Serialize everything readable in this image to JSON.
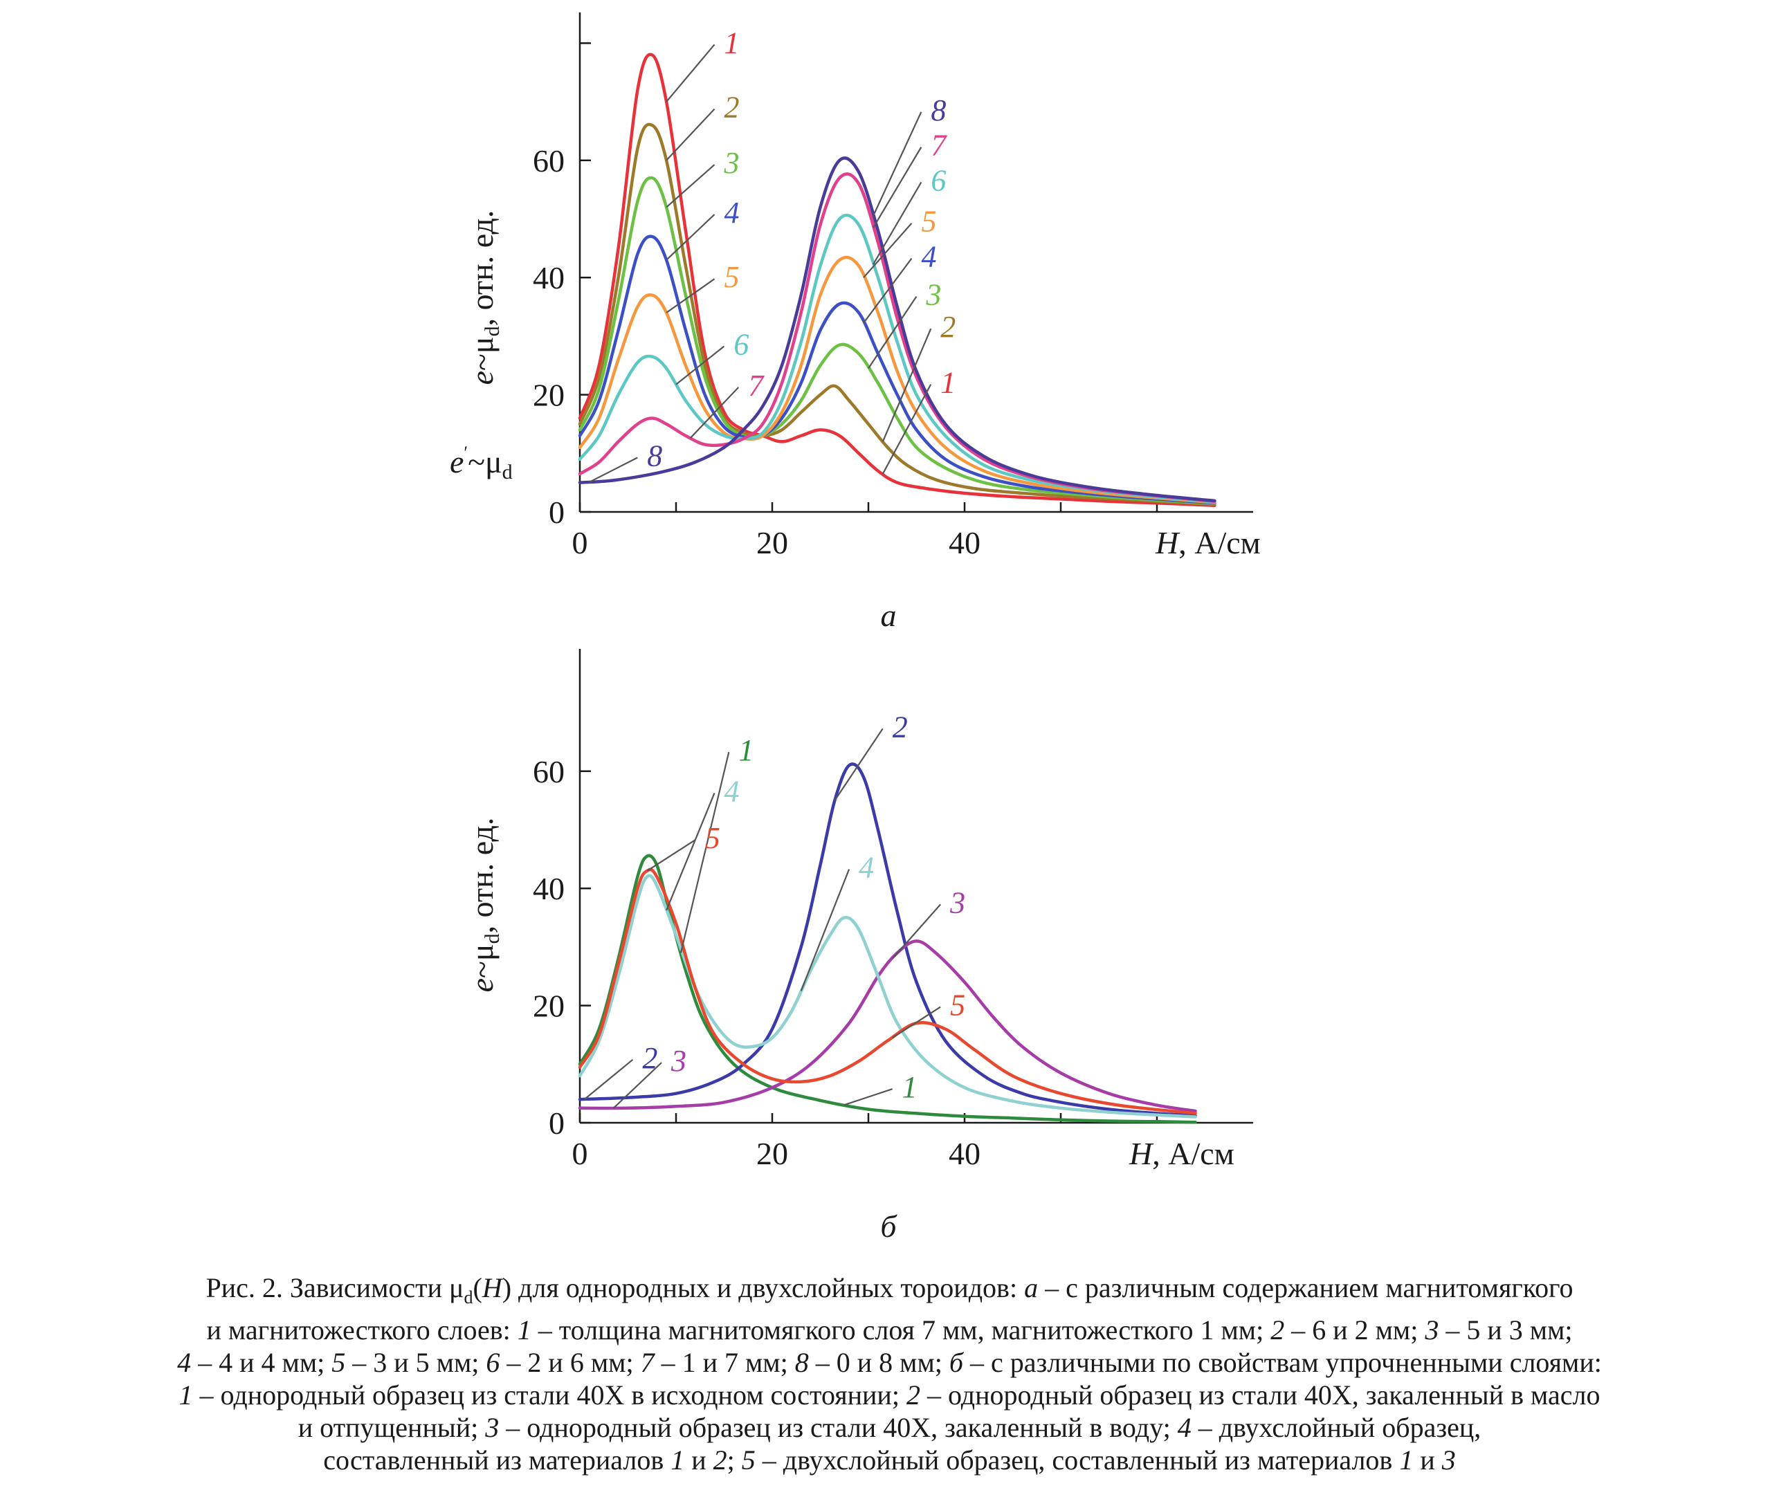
{
  "colors": {
    "axis": "#1a1a1a",
    "leader": "#555555",
    "a": [
      "#e8323a",
      "#9c7a2a",
      "#6cc044",
      "#3d4fc4",
      "#f5983e",
      "#5cc8c4",
      "#e0408c",
      "#4a3a9a"
    ],
    "b": [
      "#2e8a3c",
      "#3a3aa8",
      "#a63ca8",
      "#8fd0d0",
      "#e8482e"
    ]
  },
  "chart_data": [
    {
      "type": "line",
      "panel_label": "а",
      "xlabel_var": "H",
      "xlabel_unit": ", А/см",
      "ylabel": "e~μ",
      "ylabel_sub": "d",
      "ylabel_unit": ", отн. ед.",
      "yextra_e": "e",
      "yextra_prime": "′",
      "yextra_mu": "~μ",
      "yextra_sub": "d",
      "xlim": [
        0,
        70
      ],
      "ylim": [
        0,
        85
      ],
      "xticks": [
        {
          "v": 0,
          "l": "0"
        },
        {
          "v": 20,
          "l": "20"
        },
        {
          "v": 40,
          "l": "40"
        }
      ],
      "yticks": [
        {
          "v": 0,
          "l": "0"
        },
        {
          "v": 20,
          "l": "20"
        },
        {
          "v": 40,
          "l": "40"
        },
        {
          "v": 60,
          "l": "60"
        },
        {
          "v": 80,
          "l": ""
        }
      ],
      "xminor": [
        10,
        30,
        50,
        60
      ],
      "series": [
        {
          "name": "1",
          "x": [
            0,
            2,
            4,
            6,
            7.5,
            9,
            11,
            13,
            15,
            17,
            19,
            21,
            23,
            25,
            27,
            29,
            31,
            33,
            36,
            40,
            45,
            50,
            55,
            60,
            66
          ],
          "y": [
            16,
            25,
            45,
            72,
            78,
            70,
            48,
            27,
            17,
            14,
            13,
            12,
            13,
            14,
            13,
            10,
            7,
            5,
            4,
            3.2,
            2.6,
            2.2,
            1.8,
            1.5,
            1.1
          ]
        },
        {
          "name": "2",
          "x": [
            0,
            2,
            4,
            6,
            7.5,
            9,
            11,
            13,
            15,
            17,
            19,
            21,
            23,
            25,
            26.5,
            28,
            30,
            32,
            34,
            37,
            41,
            46,
            52,
            58,
            66
          ],
          "y": [
            15,
            23,
            40,
            62,
            66,
            60,
            42,
            25,
            16,
            13.5,
            13,
            14,
            17,
            20,
            21.5,
            19,
            15,
            11,
            8,
            5.5,
            4,
            3.2,
            2.5,
            2,
            1.3
          ]
        },
        {
          "name": "3",
          "x": [
            0,
            2,
            4,
            6,
            7.5,
            9,
            11,
            13,
            15,
            17,
            19,
            21,
            23,
            25,
            27,
            29,
            31,
            33,
            35,
            38,
            42,
            47,
            53,
            59,
            66
          ],
          "y": [
            14,
            21,
            36,
            53,
            57,
            52,
            37,
            23,
            15.5,
            13,
            13,
            15,
            19,
            25,
            28.5,
            27,
            22,
            16,
            11,
            7.5,
            5,
            3.7,
            2.8,
            2.1,
            1.4
          ]
        },
        {
          "name": "4",
          "x": [
            0,
            2,
            4,
            6,
            7.5,
            9,
            11,
            13,
            15,
            17,
            19,
            21,
            23,
            25,
            27,
            29,
            31,
            33,
            35,
            38,
            42,
            47,
            53,
            59,
            66
          ],
          "y": [
            13,
            19,
            31,
            44,
            47,
            43,
            31,
            20,
            14.5,
            12.8,
            13,
            16,
            22,
            31,
            35.5,
            34,
            27,
            20,
            14,
            9,
            6,
            4.2,
            3.1,
            2.3,
            1.5
          ]
        },
        {
          "name": "5",
          "x": [
            0,
            2,
            4,
            6,
            7.5,
            9,
            11,
            13,
            15,
            17,
            19,
            21,
            23,
            25,
            27,
            29,
            31,
            33,
            35,
            38,
            42,
            47,
            53,
            59,
            66
          ],
          "y": [
            11,
            16,
            26,
            35,
            37,
            34,
            25,
            17.5,
            13.5,
            12.5,
            13,
            17,
            25,
            37,
            43,
            42,
            34,
            24,
            17,
            11,
            7,
            4.8,
            3.4,
            2.5,
            1.6
          ]
        },
        {
          "name": "6",
          "x": [
            0,
            2,
            4,
            6,
            7.5,
            9,
            11,
            13,
            15,
            17,
            19,
            21,
            23,
            25,
            27,
            29,
            31,
            33,
            35,
            38,
            42,
            47,
            53,
            59,
            66
          ],
          "y": [
            9,
            13,
            20,
            25.5,
            26.5,
            24.5,
            19,
            15,
            13,
            12.5,
            13.5,
            19,
            29,
            42,
            50,
            49,
            40,
            29,
            20,
            13,
            8,
            5.4,
            3.8,
            2.7,
            1.7
          ]
        },
        {
          "name": "7",
          "x": [
            0,
            2,
            4,
            6,
            7.5,
            9,
            11,
            13,
            15,
            17,
            19,
            21,
            23,
            25,
            27,
            29,
            31,
            33,
            35,
            38,
            42,
            47,
            53,
            59,
            66
          ],
          "y": [
            6.5,
            8.5,
            12,
            15,
            16,
            15,
            13,
            11.5,
            11.5,
            12.5,
            15,
            22,
            34,
            49,
            57,
            56,
            46,
            33,
            23,
            14.5,
            9,
            5.9,
            4,
            2.9,
            1.8
          ]
        },
        {
          "name": "8",
          "x": [
            0,
            3,
            6,
            9,
            12,
            15,
            17,
            19,
            21,
            23,
            25,
            27,
            29,
            31,
            33,
            35,
            38,
            42,
            47,
            53,
            59,
            66
          ],
          "y": [
            5,
            5.3,
            6,
            7,
            8.5,
            11,
            14,
            18,
            25,
            37,
            52,
            60,
            58,
            48,
            35,
            24,
            15,
            9.5,
            6.2,
            4.2,
            3,
            1.9
          ]
        }
      ],
      "curve_labels": [
        {
          "t": "1",
          "x": 15,
          "y": 80
        },
        {
          "t": "2",
          "x": 15,
          "y": 69
        },
        {
          "t": "3",
          "x": 15,
          "y": 59.5
        },
        {
          "t": "4",
          "x": 15,
          "y": 51
        },
        {
          "t": "5",
          "x": 15,
          "y": 40
        },
        {
          "t": "6",
          "x": 16,
          "y": 28.5
        },
        {
          "t": "7",
          "x": 17.5,
          "y": 21.5
        },
        {
          "t": "8",
          "x": 7,
          "y": 9.5
        },
        {
          "t": "8",
          "x": 36.5,
          "y": 68.5
        },
        {
          "t": "7",
          "x": 36.5,
          "y": 62.5
        },
        {
          "t": "6",
          "x": 36.5,
          "y": 56.5
        },
        {
          "t": "5",
          "x": 35.5,
          "y": 49.5
        },
        {
          "t": "4",
          "x": 35.5,
          "y": 43.5
        },
        {
          "t": "3",
          "x": 36,
          "y": 37
        },
        {
          "t": "2",
          "x": 37.5,
          "y": 31.5
        },
        {
          "t": "1",
          "x": 37.5,
          "y": 22
        }
      ]
    },
    {
      "type": "line",
      "panel_label": "б",
      "xlabel_var": "H",
      "xlabel_unit": ", А/см",
      "ylabel": "e~μ",
      "ylabel_sub": "d",
      "ylabel_unit": ", отн. ед.",
      "xlim": [
        0,
        70
      ],
      "ylim": [
        0,
        83
      ],
      "xticks": [
        {
          "v": 0,
          "l": "0"
        },
        {
          "v": 20,
          "l": "20"
        },
        {
          "v": 40,
          "l": "40"
        }
      ],
      "yticks": [
        {
          "v": 0,
          "l": "0"
        },
        {
          "v": 20,
          "l": "20"
        },
        {
          "v": 40,
          "l": "40"
        },
        {
          "v": 60,
          "l": "60"
        }
      ],
      "xminor": [
        10,
        30,
        50,
        60
      ],
      "series": [
        {
          "name": "1",
          "x": [
            0,
            2,
            4,
            6,
            7,
            8,
            9,
            11,
            13,
            16,
            20,
            25,
            30,
            35,
            40,
            45,
            50,
            55,
            60,
            64
          ],
          "y": [
            10,
            16,
            28,
            42,
            45.5,
            44,
            38,
            26,
            17,
            10,
            6,
            3.8,
            2.3,
            1.6,
            1.1,
            0.8,
            0.5,
            0.3,
            0.2,
            0.1
          ]
        },
        {
          "name": "2",
          "x": [
            0,
            5,
            10,
            14,
            17,
            20,
            23,
            25,
            26.5,
            28,
            29.5,
            31,
            33,
            35,
            38,
            42,
            46,
            50,
            55,
            60,
            64
          ],
          "y": [
            4,
            4.3,
            5,
            7,
            10,
            16,
            30,
            44,
            55,
            61,
            59,
            50,
            36,
            24,
            14,
            8,
            5,
            3.5,
            2.3,
            1.6,
            1.2
          ]
        },
        {
          "name": "3",
          "x": [
            0,
            5,
            10,
            15,
            20,
            24,
            28,
            31,
            33,
            35,
            37,
            40,
            43,
            46,
            50,
            55,
            60,
            64
          ],
          "y": [
            2.5,
            2.5,
            2.8,
            3.5,
            6,
            10,
            17,
            25,
            29,
            31,
            29,
            24,
            18,
            13,
            8.5,
            5,
            3,
            2
          ]
        },
        {
          "name": "4",
          "x": [
            0,
            2,
            4,
            6,
            7,
            8,
            10,
            12,
            14,
            16,
            18,
            20,
            22,
            24,
            26,
            27.5,
            29,
            31,
            33,
            36,
            40,
            45,
            50,
            56,
            64
          ],
          "y": [
            8,
            14,
            25,
            38,
            42,
            40.5,
            32,
            23,
            17,
            13.5,
            13,
            14.5,
            19,
            26,
            32,
            35,
            33,
            25,
            17,
            10.5,
            6,
            3.7,
            2.5,
            1.7,
            1
          ]
        },
        {
          "name": "5",
          "x": [
            0,
            2,
            4,
            6,
            7,
            8,
            10,
            12,
            14,
            17,
            20,
            23,
            26,
            29,
            32,
            35,
            38,
            41,
            45,
            50,
            56,
            64
          ],
          "y": [
            9.5,
            15,
            27,
            40,
            43,
            42,
            34,
            23,
            15,
            10,
            7.5,
            7,
            8,
            10.5,
            14,
            17,
            16,
            12.5,
            8,
            5,
            3,
            1.6
          ]
        }
      ],
      "curve_labels": [
        {
          "t": "1",
          "x": 16.5,
          "y": 63.5
        },
        {
          "t": "4",
          "x": 15,
          "y": 56.5
        },
        {
          "t": "5",
          "x": 13,
          "y": 48.5
        },
        {
          "t": "2",
          "x": 32.5,
          "y": 67.5
        },
        {
          "t": "4",
          "x": 29,
          "y": 43.5
        },
        {
          "t": "3",
          "x": 38.5,
          "y": 37.5
        },
        {
          "t": "5",
          "x": 38.5,
          "y": 20
        },
        {
          "t": "2",
          "x": 6.5,
          "y": 11
        },
        {
          "t": "3",
          "x": 9.5,
          "y": 10.5
        },
        {
          "t": "1",
          "x": 33.5,
          "y": 6
        }
      ]
    }
  ],
  "caption": {
    "lines": [
      [
        {
          "t": "Рис. 2. Зависимости μ",
          "i": false
        },
        {
          "t": "d",
          "sub": true
        },
        {
          "t": "(",
          "i": false
        },
        {
          "t": "H",
          "i": true
        },
        {
          "t": ") для однородных и двухслойных тороидов: ",
          "i": false
        },
        {
          "t": "а",
          "i": true
        },
        {
          "t": " – с различным содержанием магнитомягкого",
          "i": false
        }
      ],
      [
        {
          "t": "и магнитожесткого слоев: ",
          "i": false
        },
        {
          "t": "1",
          "i": true
        },
        {
          "t": " – толщина магнитомягкого слоя 7 мм, магнитожесткого 1 мм; ",
          "i": false
        },
        {
          "t": "2",
          "i": true
        },
        {
          "t": " – 6 и 2 мм; ",
          "i": false
        },
        {
          "t": "3",
          "i": true
        },
        {
          "t": " – 5 и 3 мм;",
          "i": false
        }
      ],
      [
        {
          "t": "4",
          "i": true
        },
        {
          "t": " – 4 и 4 мм; ",
          "i": false
        },
        {
          "t": "5",
          "i": true
        },
        {
          "t": " – 3 и 5 мм; ",
          "i": false
        },
        {
          "t": "6",
          "i": true
        },
        {
          "t": " – 2 и 6 мм; ",
          "i": false
        },
        {
          "t": "7",
          "i": true
        },
        {
          "t": " – 1 и 7 мм; ",
          "i": false
        },
        {
          "t": "8",
          "i": true
        },
        {
          "t": " – 0 и 8 мм; ",
          "i": false
        },
        {
          "t": "б",
          "i": true
        },
        {
          "t": " – с различными по свойствам упрочненными слоями:",
          "i": false
        }
      ],
      [
        {
          "t": "1",
          "i": true
        },
        {
          "t": " – однородный образец из стали 40Х в исходном состоянии; ",
          "i": false
        },
        {
          "t": "2",
          "i": true
        },
        {
          "t": " – однородный образец из стали 40Х, закаленный в масло",
          "i": false
        }
      ],
      [
        {
          "t": "и отпущенный; ",
          "i": false
        },
        {
          "t": "3",
          "i": true
        },
        {
          "t": " – однородный образец из стали 40Х, закаленный в воду; ",
          "i": false
        },
        {
          "t": "4",
          "i": true
        },
        {
          "t": " – двухслойный образец,",
          "i": false
        }
      ],
      [
        {
          "t": "составленный из материалов ",
          "i": false
        },
        {
          "t": "1",
          "i": true
        },
        {
          "t": " и ",
          "i": false
        },
        {
          "t": "2",
          "i": true
        },
        {
          "t": "; ",
          "i": false
        },
        {
          "t": "5",
          "i": true
        },
        {
          "t": " – двухслойный образец, составленный из материалов ",
          "i": false
        },
        {
          "t": "1",
          "i": true
        },
        {
          "t": " и ",
          "i": false
        },
        {
          "t": "3",
          "i": true
        }
      ]
    ]
  }
}
